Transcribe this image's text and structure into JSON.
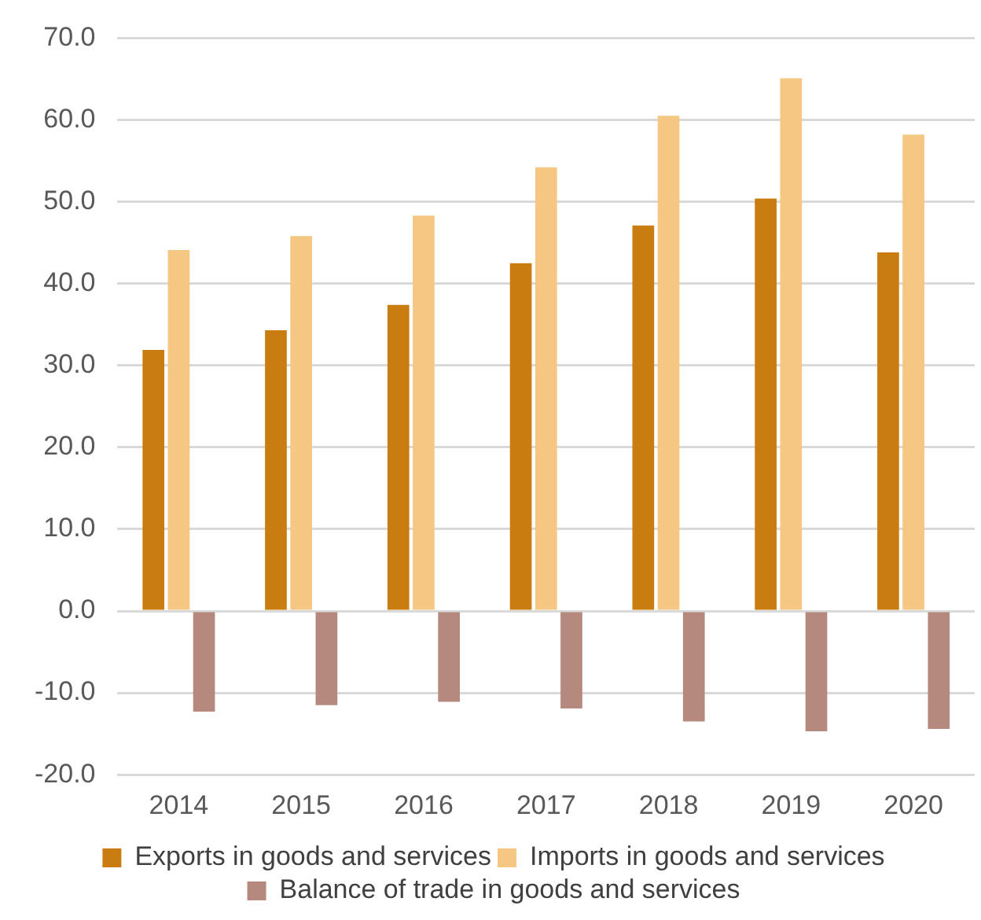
{
  "chart_data": {
    "type": "bar",
    "categories": [
      "2014",
      "2015",
      "2016",
      "2017",
      "2018",
      "2019",
      "2020"
    ],
    "series": [
      {
        "name": "Exports in goods and services",
        "color": "#c97d10",
        "values": [
          31.9,
          34.3,
          37.4,
          42.5,
          47.1,
          50.4,
          43.8
        ]
      },
      {
        "name": "Imports in goods and services",
        "color": "#f5c783",
        "values": [
          44.1,
          45.8,
          48.3,
          54.2,
          60.5,
          65.1,
          58.2
        ]
      },
      {
        "name": "Balance of trade in goods and services",
        "color": "#b5897e",
        "values": [
          -12.3,
          -11.5,
          -11.1,
          -11.9,
          -13.5,
          -14.7,
          -14.4
        ]
      }
    ],
    "ylim": [
      -20,
      70
    ],
    "yticks": [
      {
        "value": -20,
        "label": "-20.0"
      },
      {
        "value": -10,
        "label": "-10.0"
      },
      {
        "value": 0,
        "label": "0.0"
      },
      {
        "value": 10,
        "label": "10.0"
      },
      {
        "value": 20,
        "label": "20.0"
      },
      {
        "value": 30,
        "label": "30.0"
      },
      {
        "value": 40,
        "label": "40.0"
      },
      {
        "value": 50,
        "label": "50.0"
      },
      {
        "value": 60,
        "label": "60.0"
      },
      {
        "value": 70,
        "label": "70.0"
      }
    ],
    "grid": "y",
    "legend": "bottom"
  }
}
